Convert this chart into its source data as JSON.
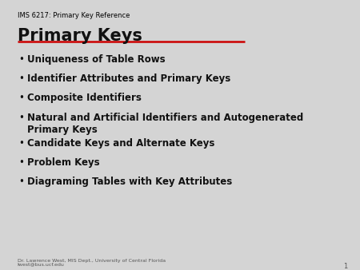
{
  "background_color": "#d4d4d4",
  "header_text": "IMS 6217: Primary Key Reference",
  "header_fontsize": 6.0,
  "header_color": "#000000",
  "title_text": "Primary Keys",
  "title_fontsize": 15,
  "title_fontweight": "bold",
  "title_color": "#111111",
  "underline_color": "#cc0000",
  "underline_linewidth": 1.8,
  "bullet_items": [
    "Uniqueness of Table Rows",
    "Identifier Attributes and Primary Keys",
    "Composite Identifiers",
    "Natural and Artificial Identifiers and Autogenerated\nPrimary Keys",
    "Candidate Keys and Alternate Keys",
    "Problem Keys",
    "Diagraming Tables with Key Attributes"
  ],
  "bullet_fontsize": 8.5,
  "bullet_fontweight": "bold",
  "bullet_color": "#111111",
  "bullet_char": "•",
  "footer_text1": "Dr. Lawrence West, MIS Dept., University of Central Florida",
  "footer_text2": "lwest@bus.ucf.edu",
  "footer_fontsize": 4.5,
  "footer_color": "#555555",
  "page_number": "1",
  "page_number_fontsize": 6.0
}
